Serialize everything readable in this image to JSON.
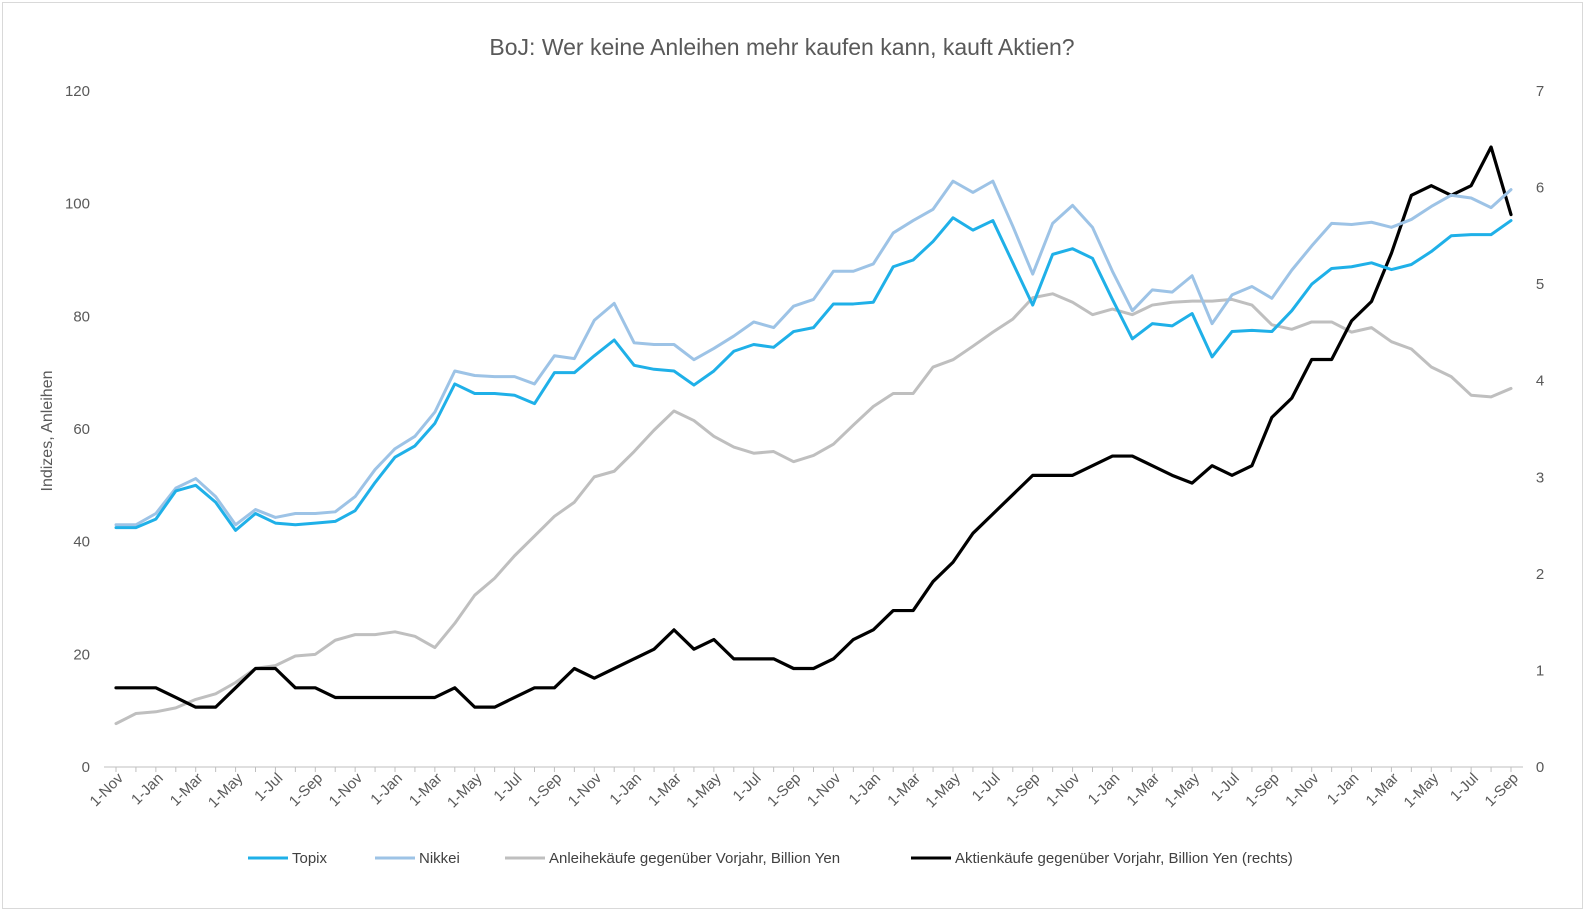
{
  "chart_data": {
    "type": "line",
    "title": "BoJ: Wer keine Anleihen mehr kaufen kann, kauft Aktien?",
    "xlabel": "",
    "ylabel": "Indizes, Anleihen",
    "y2label": "",
    "ylim": [
      0,
      120
    ],
    "y2lim": [
      0,
      7
    ],
    "yticks": [
      0,
      20,
      40,
      60,
      80,
      100,
      120
    ],
    "y2ticks": [
      0,
      1,
      2,
      3,
      4,
      5,
      6,
      7
    ],
    "grid": false,
    "legend_position": "bottom",
    "colors": {
      "topix": "#1fb0e8",
      "nikkei": "#9dc3e6",
      "anleihe": "#bfbfbf",
      "aktien": "#000000",
      "axis": "#bfbfbf",
      "text": "#595959"
    },
    "x": [
      "1-Nov",
      "1-Dec",
      "1-Jan",
      "1-Feb",
      "1-Mar",
      "1-Apr",
      "1-May",
      "1-Jun",
      "1-Jul",
      "1-Aug",
      "1-Sep",
      "1-Oct",
      "1-Nov",
      "1-Dec",
      "1-Jan",
      "1-Feb",
      "1-Mar",
      "1-Apr",
      "1-May",
      "1-Jun",
      "1-Jul",
      "1-Aug",
      "1-Sep",
      "1-Oct",
      "1-Nov",
      "1-Dec",
      "1-Jan",
      "1-Feb",
      "1-Mar",
      "1-Apr",
      "1-May",
      "1-Jun",
      "1-Jul",
      "1-Aug",
      "1-Sep",
      "1-Oct",
      "1-Nov",
      "1-Dec",
      "1-Jan",
      "1-Feb",
      "1-Mar",
      "1-Apr",
      "1-May",
      "1-Jun",
      "1-Jul",
      "1-Aug",
      "1-Sep",
      "1-Oct",
      "1-Nov",
      "1-Dec",
      "1-Jan",
      "1-Feb",
      "1-Mar",
      "1-Apr",
      "1-May",
      "1-Jun",
      "1-Jul",
      "1-Aug",
      "1-Sep",
      "1-Oct",
      "1-Nov",
      "1-Dec",
      "1-Jan",
      "1-Feb",
      "1-Mar",
      "1-Apr",
      "1-May",
      "1-Jun",
      "1-Jul",
      "1-Aug",
      "1-Sep"
    ],
    "x_tick_labels": [
      "1-Nov",
      "1-Jan",
      "1-Mar",
      "1-May",
      "1-Jul",
      "1-Sep",
      "1-Nov",
      "1-Jan",
      "1-Mar",
      "1-May",
      "1-Jul",
      "1-Sep",
      "1-Nov",
      "1-Jan",
      "1-Mar",
      "1-May",
      "1-Jul",
      "1-Sep",
      "1-Nov",
      "1-Jan",
      "1-Mar",
      "1-May",
      "1-Jul",
      "1-Sep",
      "1-Nov",
      "1-Jan",
      "1-Mar",
      "1-May",
      "1-Jul",
      "1-Sep",
      "1-Nov",
      "1-Jan",
      "1-Mar",
      "1-May",
      "1-Jul",
      "1-Sep"
    ],
    "series": [
      {
        "key": "topix",
        "name": "Topix",
        "axis": "left",
        "values": [
          42.5,
          42.5,
          44,
          49,
          50,
          47,
          42,
          45,
          43.3,
          43,
          43.3,
          43.6,
          45.5,
          50.5,
          55,
          57,
          61,
          68,
          66.3,
          66.3,
          66,
          64.5,
          70,
          70,
          73,
          75.8,
          71.3,
          70.6,
          70.3,
          67.8,
          70.3,
          73.8,
          75,
          74.5,
          77.3,
          78,
          82.2,
          82.2,
          82.5,
          88.8,
          90,
          93.3,
          97.5,
          95.3,
          97,
          89.5,
          82,
          91,
          92,
          90.3,
          83,
          76,
          78.7,
          78.3,
          80.5,
          72.8,
          77.3,
          77.5,
          77.3,
          81,
          85.7,
          88.5,
          88.8,
          89.5,
          88.3,
          89.2,
          91.5,
          94.3,
          94.5,
          94.5,
          97
        ]
      },
      {
        "key": "nikkei",
        "name": "Nikkei",
        "axis": "left",
        "values": [
          43,
          43,
          45,
          49.5,
          51.2,
          48,
          43,
          45.7,
          44.3,
          45,
          45,
          45.3,
          48,
          52.8,
          56.5,
          58.7,
          63,
          70.3,
          69.5,
          69.3,
          69.3,
          68,
          73,
          72.5,
          79.3,
          82.3,
          75.3,
          75,
          75,
          72.3,
          74.3,
          76.5,
          79,
          78,
          81.8,
          83,
          88,
          88,
          89.3,
          94.8,
          97,
          99,
          104,
          102,
          104,
          96,
          87.5,
          96.5,
          99.7,
          95.8,
          88,
          81,
          84.7,
          84.3,
          87.2,
          78.7,
          83.8,
          85.3,
          83.2,
          88.2,
          92.5,
          96.5,
          96.3,
          96.7,
          95.8,
          97.2,
          99.5,
          101.5,
          101,
          99.3,
          102.5
        ]
      },
      {
        "key": "anleihe",
        "name": "Anleihekäufe gegenüber Vorjahr, Billion Yen",
        "axis": "left",
        "values": [
          7.7,
          9.5,
          9.8,
          10.5,
          12,
          13,
          15,
          17.5,
          18,
          19.7,
          20,
          22.5,
          23.5,
          23.5,
          24,
          23.2,
          21.2,
          25.5,
          30.5,
          33.5,
          37.5,
          41,
          44.5,
          47,
          51.5,
          52.5,
          56,
          59.8,
          63.2,
          61.5,
          58.7,
          56.8,
          55.7,
          56,
          54.2,
          55.3,
          57.3,
          60.7,
          64,
          66.3,
          66.3,
          71,
          72.3,
          74.7,
          77.2,
          79.5,
          83.3,
          84,
          82.5,
          80.3,
          81.3,
          80.3,
          82,
          82.5,
          82.7,
          82.7,
          83,
          82,
          78.5,
          77.7,
          79,
          79,
          77.2,
          78,
          75.5,
          74.2,
          71,
          69.3,
          66,
          65.7,
          67.2
        ]
      },
      {
        "key": "aktien",
        "name": "Aktienkäufe gegenüber Vorjahr, Billion Yen (rechts)",
        "axis": "right",
        "values": [
          0.82,
          0.82,
          0.82,
          0.72,
          0.62,
          0.62,
          0.82,
          1.02,
          1.02,
          0.82,
          0.82,
          0.72,
          0.72,
          0.72,
          0.72,
          0.72,
          0.72,
          0.82,
          0.62,
          0.62,
          0.72,
          0.82,
          0.82,
          1.02,
          0.92,
          1.02,
          1.12,
          1.22,
          1.42,
          1.22,
          1.32,
          1.12,
          1.12,
          1.12,
          1.02,
          1.02,
          1.12,
          1.32,
          1.42,
          1.62,
          1.62,
          1.92,
          2.12,
          2.42,
          2.62,
          2.82,
          3.02,
          3.02,
          3.02,
          3.12,
          3.22,
          3.22,
          3.12,
          3.02,
          2.94,
          3.12,
          3.02,
          3.12,
          3.62,
          3.82,
          4.22,
          4.22,
          4.62,
          4.82,
          5.32,
          5.92,
          6.02,
          5.92,
          6.02,
          6.42,
          5.72
        ]
      }
    ]
  }
}
